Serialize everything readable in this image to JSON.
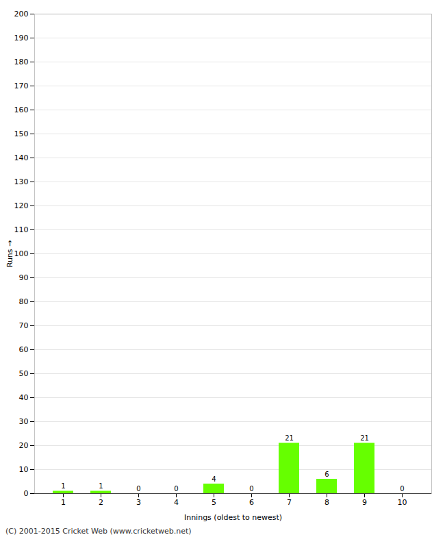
{
  "chart_data": {
    "type": "bar",
    "categories": [
      "1",
      "2",
      "3",
      "4",
      "5",
      "6",
      "7",
      "8",
      "9",
      "10"
    ],
    "values": [
      1,
      1,
      0,
      0,
      4,
      0,
      21,
      6,
      21,
      0
    ],
    "color": "#66ff00",
    "xlabel": "Innings (oldest to newest)",
    "ylabel": "Runs",
    "ylim": [
      0,
      200
    ],
    "yticks": [
      0,
      10,
      20,
      30,
      40,
      50,
      60,
      70,
      80,
      90,
      100,
      110,
      120,
      130,
      140,
      150,
      160,
      170,
      180,
      190,
      200
    ],
    "grid": true,
    "data_labels": true,
    "annotations": [
      "(C) 2001-2015 Cricket Web (www.cricketweb.net)"
    ]
  }
}
